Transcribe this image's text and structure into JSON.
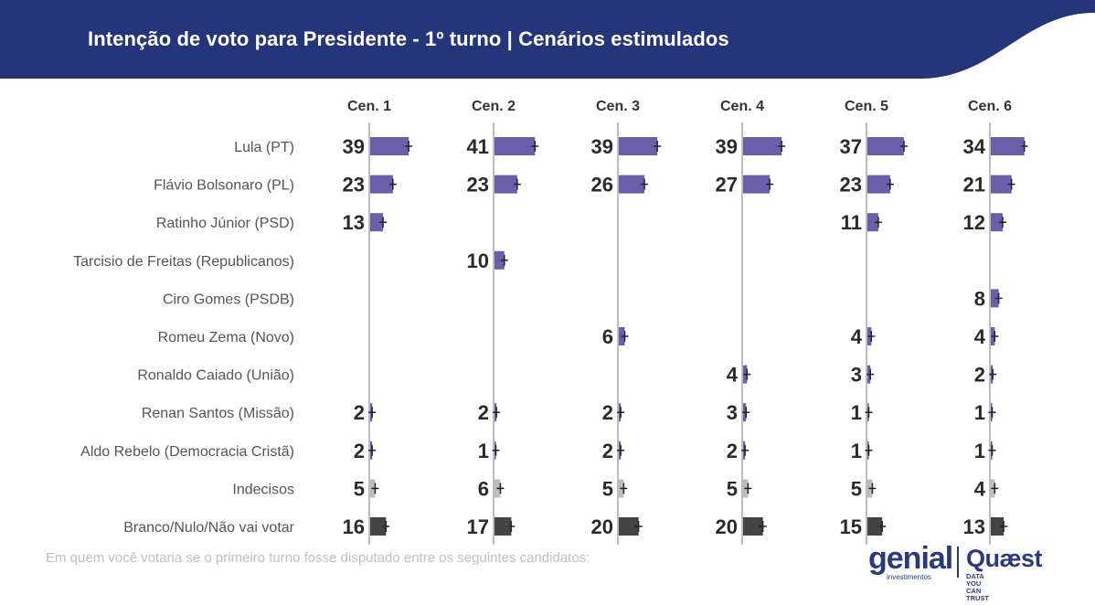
{
  "header": {
    "title": "Intenção de voto para Presidente - 1º turno | Cenários estimulados",
    "background": "#243679"
  },
  "footnote": "Em quem você votaria se o primeiro turno fosse disputado entre os seguintes candidatos:",
  "logos": {
    "genial": "genial",
    "genial_sub": "investimentos",
    "quaest": "Quæst",
    "quaest_sub": "DATA YOU CAN TRUST"
  },
  "chart_data": {
    "type": "bar",
    "orientation": "horizontal",
    "title": "Intenção de voto para Presidente - 1º turno | Cenários estimulados",
    "categories": [
      "Lula (PT)",
      "Flávio Bolsonaro (PL)",
      "Ratinho Júnior (PSD)",
      "Tarcisio de Freitas (Republicanos)",
      "Ciro Gomes (PSDB)",
      "Romeu Zema (Novo)",
      "Ronaldo Caiado (União)",
      "Renan Santos (Missão)",
      "Aldo Rebelo (Democracia Cristã)",
      "Indecisos",
      "Branco/Nulo/Não vai votar"
    ],
    "series": [
      {
        "name": "Cen. 1",
        "values": [
          39,
          23,
          13,
          null,
          null,
          null,
          null,
          2,
          2,
          5,
          16
        ]
      },
      {
        "name": "Cen. 2",
        "values": [
          41,
          23,
          null,
          10,
          null,
          null,
          null,
          2,
          1,
          6,
          17
        ]
      },
      {
        "name": "Cen. 3",
        "values": [
          39,
          26,
          null,
          null,
          null,
          6,
          null,
          2,
          2,
          5,
          20
        ]
      },
      {
        "name": "Cen. 4",
        "values": [
          39,
          27,
          null,
          null,
          null,
          null,
          4,
          3,
          2,
          5,
          20
        ]
      },
      {
        "name": "Cen. 5",
        "values": [
          37,
          23,
          11,
          null,
          null,
          4,
          3,
          1,
          1,
          5,
          15
        ]
      },
      {
        "name": "Cen. 6",
        "values": [
          34,
          21,
          12,
          null,
          8,
          4,
          2,
          1,
          1,
          4,
          13
        ]
      }
    ],
    "colors": {
      "candidate": "#6a5fa8",
      "indecisos": "#bdbdbd",
      "branco_nulo": "#444444",
      "value_label": "#2a2a2a",
      "category_label": "#555555",
      "axis": "#bdbdbd"
    },
    "grid": false,
    "legend": "none"
  }
}
